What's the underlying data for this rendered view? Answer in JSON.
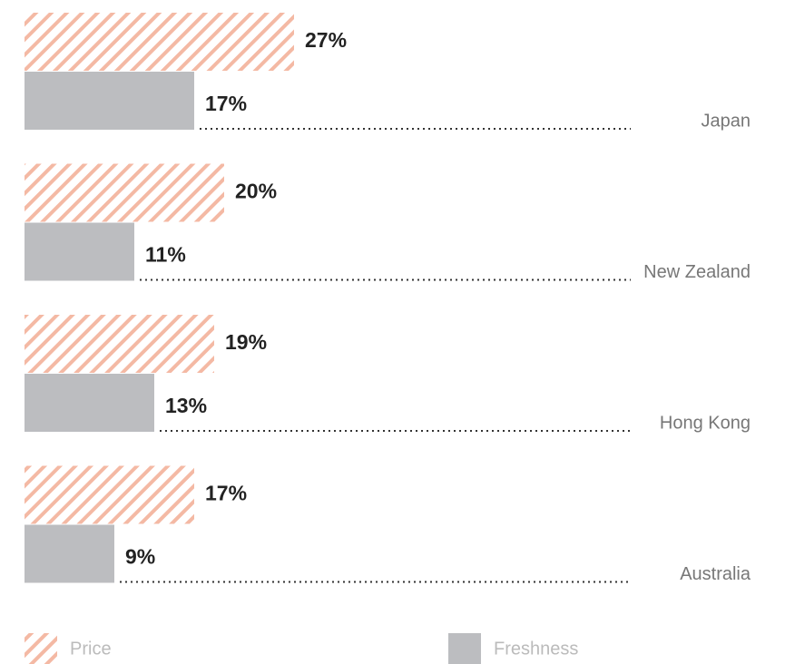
{
  "chart_data": {
    "type": "bar",
    "orientation": "horizontal",
    "categories": [
      "Japan",
      "New Zealand",
      "Hong Kong",
      "Australia"
    ],
    "series": [
      {
        "name": "Price",
        "color": "#f4b9a4",
        "pattern": "hatch",
        "values": [
          27,
          20,
          19,
          17
        ],
        "value_labels": [
          "27%",
          "20%",
          "19%",
          "17%"
        ]
      },
      {
        "name": "Freshness",
        "color": "#bcbdc0",
        "values": [
          17,
          11,
          13,
          9
        ],
        "value_labels": [
          "17%",
          "11%",
          "13%",
          "9%"
        ]
      }
    ],
    "legend": "bottom"
  }
}
